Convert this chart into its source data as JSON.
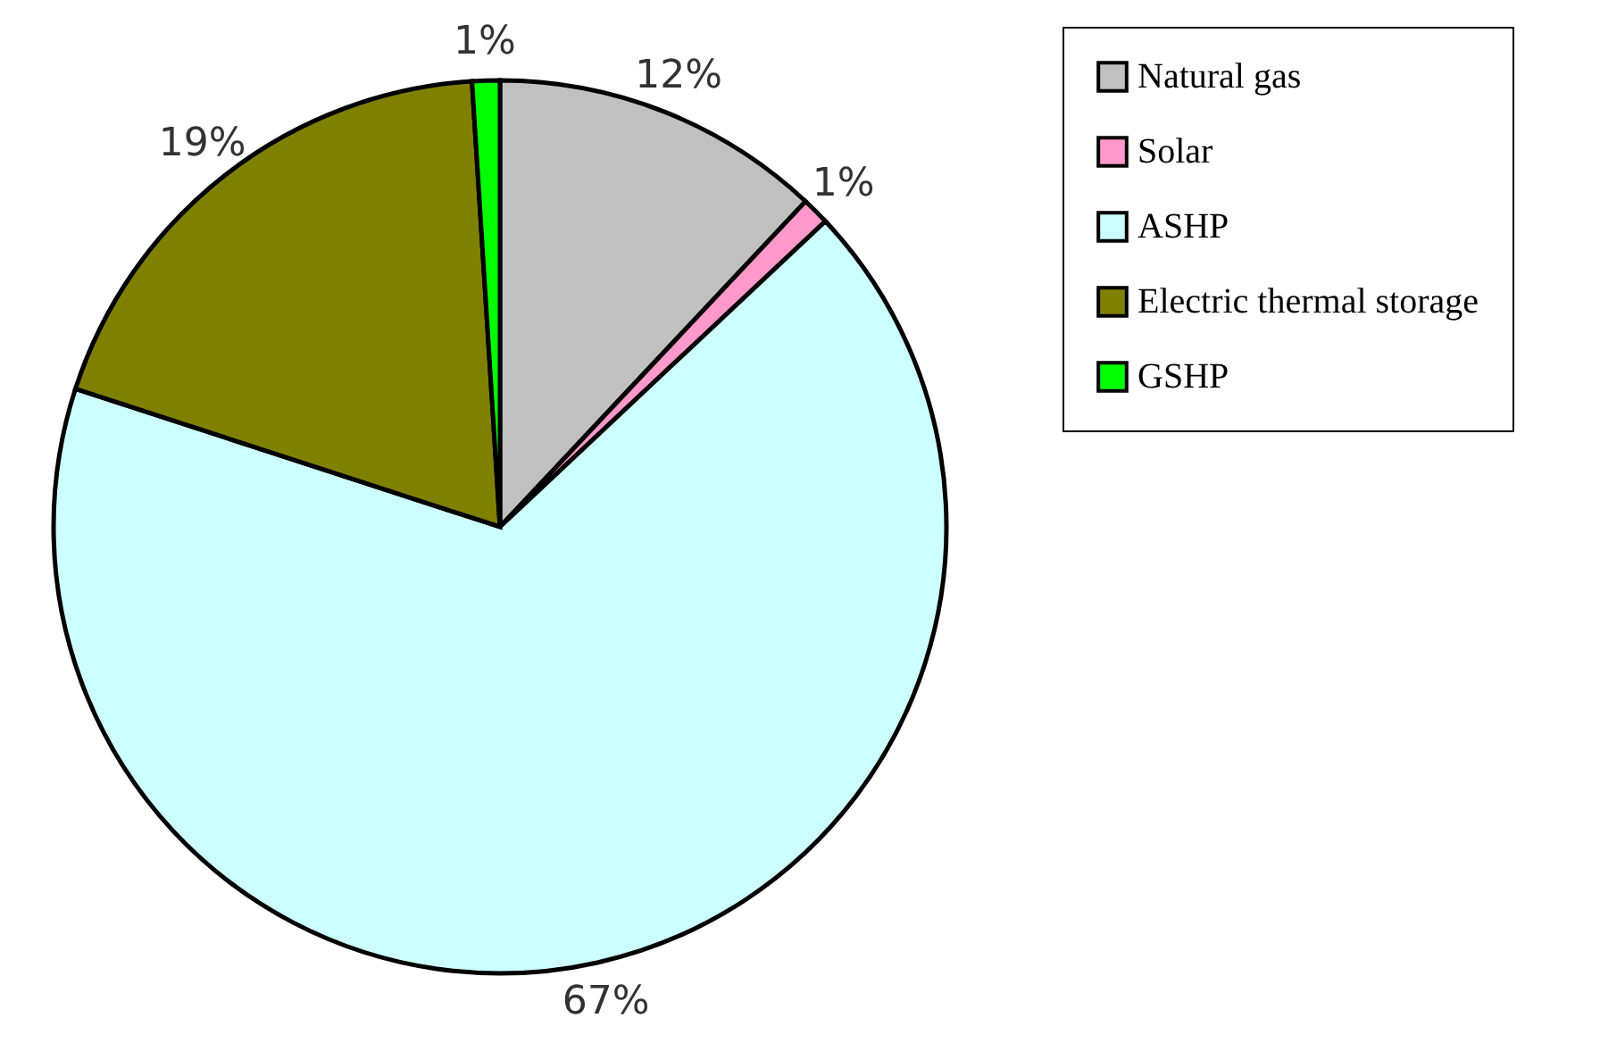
{
  "chart_data": {
    "type": "pie",
    "categories": [
      "Natural gas",
      "Solar",
      "ASHP",
      "Electric thermal storage",
      "GSHP"
    ],
    "values": [
      12,
      1,
      67,
      19,
      1
    ],
    "colors": [
      "#c0c0c0",
      "#ff99cc",
      "#ccffff",
      "#808000",
      "#00ff00"
    ],
    "value_labels": [
      "12%",
      "1%",
      "67%",
      "19%",
      "1%"
    ],
    "legend": "right"
  }
}
